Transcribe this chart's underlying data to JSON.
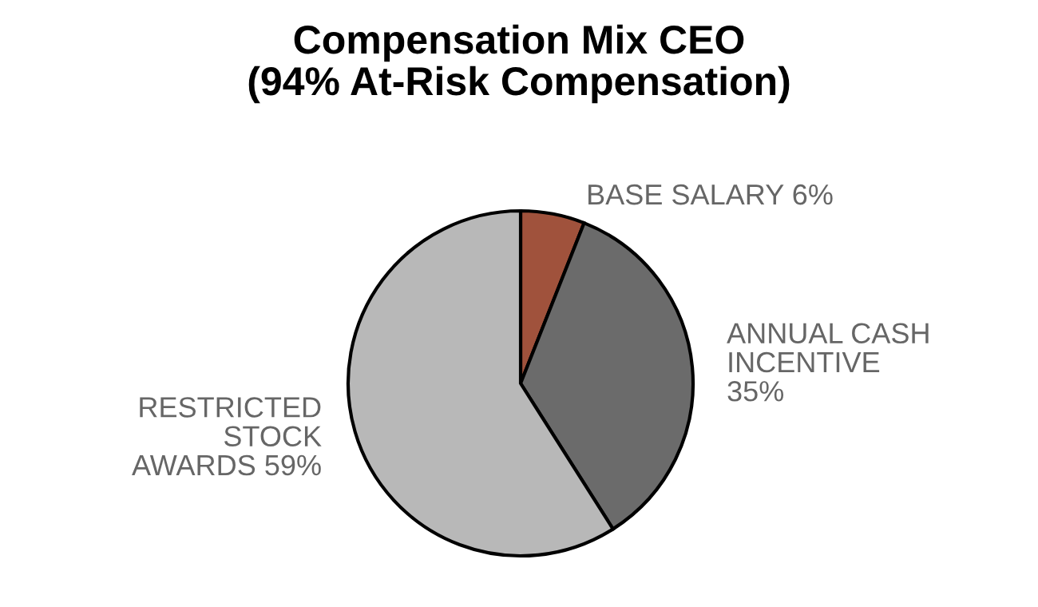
{
  "chart_data": {
    "type": "pie",
    "title": "Compensation Mix CEO\n(94% At-Risk Compensation)",
    "categories": [
      "BASE SALARY",
      "ANNUAL CASH\nINCENTIVE",
      "RESTRICTED\nSTOCK\nAWARDS"
    ],
    "values": [
      6,
      35,
      59
    ],
    "value_labels": [
      "6%",
      "35%",
      "59%"
    ],
    "colors": [
      "#a0523c",
      "#6b6b6b",
      "#b8b8b8"
    ],
    "legend": false
  }
}
